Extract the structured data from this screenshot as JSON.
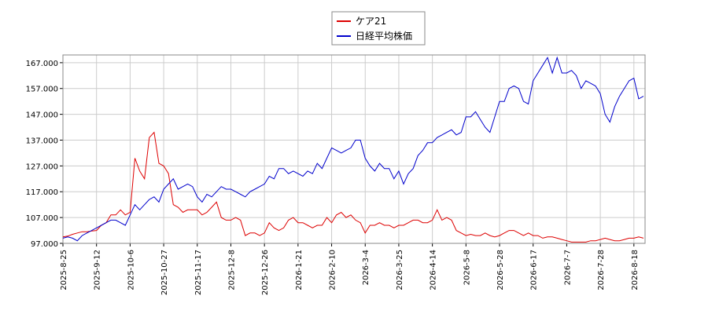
{
  "chart_data": {
    "type": "line",
    "categories": [
      "2025-8-25",
      null,
      null,
      null,
      null,
      null,
      null,
      "2025-9-12",
      null,
      null,
      null,
      null,
      null,
      null,
      "2025-10-6",
      null,
      null,
      null,
      null,
      null,
      null,
      "2025-10-27",
      null,
      null,
      null,
      null,
      null,
      null,
      "2025-11-17",
      null,
      null,
      null,
      null,
      null,
      null,
      "2025-12-8",
      null,
      null,
      null,
      null,
      null,
      null,
      "2025-12-26",
      null,
      null,
      null,
      null,
      null,
      null,
      "2026-1-21",
      null,
      null,
      null,
      null,
      null,
      null,
      "2026-2-10",
      null,
      null,
      null,
      null,
      null,
      null,
      "2026-3-4",
      null,
      null,
      null,
      null,
      null,
      null,
      "2026-3-25",
      null,
      null,
      null,
      null,
      null,
      null,
      "2026-4-14",
      null,
      null,
      null,
      null,
      null,
      null,
      "2026-5-8",
      null,
      null,
      null,
      null,
      null,
      null,
      "2026-5-28",
      null,
      null,
      null,
      null,
      null,
      null,
      "2026-6-17",
      null,
      null,
      null,
      null,
      null,
      null,
      "2026-7-7",
      null,
      null,
      null,
      null,
      null,
      null,
      "2026-7-28",
      null,
      null,
      null,
      null,
      null,
      null,
      "2026-8-18",
      null,
      null
    ],
    "series": [
      {
        "name": "ケア21",
        "color": "#dd0000",
        "values": [
          99.5,
          99.8,
          100.5,
          101,
          101.5,
          101.5,
          101.8,
          102,
          104,
          105,
          108,
          108,
          110,
          108,
          109,
          130,
          125,
          122,
          138,
          140,
          128,
          127,
          124,
          112,
          111,
          109,
          110,
          110,
          110,
          108,
          109,
          111,
          113,
          107,
          106,
          106,
          107,
          106,
          100,
          101,
          101,
          100,
          101,
          105,
          103,
          102,
          103,
          106,
          107,
          105,
          105,
          104,
          103,
          104,
          104,
          107,
          105,
          108,
          109,
          107,
          108,
          106,
          105,
          101,
          104,
          104,
          105,
          104,
          104,
          103,
          104,
          104,
          105,
          106,
          106,
          105,
          105,
          106,
          110,
          106,
          107,
          106,
          102,
          101,
          100,
          100.5,
          100,
          100,
          101,
          100,
          99.5,
          100,
          101,
          102,
          102,
          101,
          100,
          101,
          100,
          100,
          99,
          99.5,
          99.5,
          99,
          98.5,
          98,
          97.5,
          97.5,
          97.5,
          97.5,
          98,
          98,
          98.5,
          99,
          98.5,
          98,
          98,
          98.5,
          99,
          99,
          99.5,
          99
        ]
      },
      {
        "name": "日経平均株価",
        "color": "#0000cc",
        "values": [
          99,
          99.5,
          99,
          98,
          100,
          101,
          102,
          103,
          104,
          105,
          106,
          106,
          105,
          104,
          108,
          112,
          110,
          112,
          114,
          115,
          113,
          118,
          120,
          122,
          118,
          119,
          120,
          119,
          115,
          113,
          116,
          115,
          117,
          119,
          118,
          118,
          117,
          116,
          115,
          117,
          118,
          119,
          120,
          123,
          122,
          126,
          126,
          124,
          125,
          124,
          123,
          125,
          124,
          128,
          126,
          130,
          134,
          133,
          132,
          133,
          134,
          137,
          137,
          130,
          127,
          125,
          128,
          126,
          126,
          122,
          125,
          120,
          124,
          126,
          131,
          133,
          136,
          136,
          138,
          139,
          140,
          141,
          139,
          140,
          146,
          146,
          148,
          145,
          142,
          140,
          146,
          152,
          152,
          157,
          158,
          157,
          152,
          151,
          160,
          163,
          166,
          169,
          163,
          169,
          163,
          163,
          164,
          162,
          157,
          160,
          159,
          158,
          155,
          147,
          144,
          150,
          154,
          157,
          160,
          161,
          153,
          154
        ]
      }
    ],
    "ylim": [
      97,
      170
    ],
    "yticks": [
      {
        "value": 97,
        "label": "97.000"
      },
      {
        "value": 107,
        "label": "107.000"
      },
      {
        "value": 117,
        "label": "117.000"
      },
      {
        "value": 127,
        "label": "127.000"
      },
      {
        "value": 137,
        "label": "137.000"
      },
      {
        "value": 147,
        "label": "147.000"
      },
      {
        "value": 157,
        "label": "157.000"
      },
      {
        "value": 167,
        "label": "167.000"
      }
    ],
    "grid": true,
    "legend": "top"
  }
}
